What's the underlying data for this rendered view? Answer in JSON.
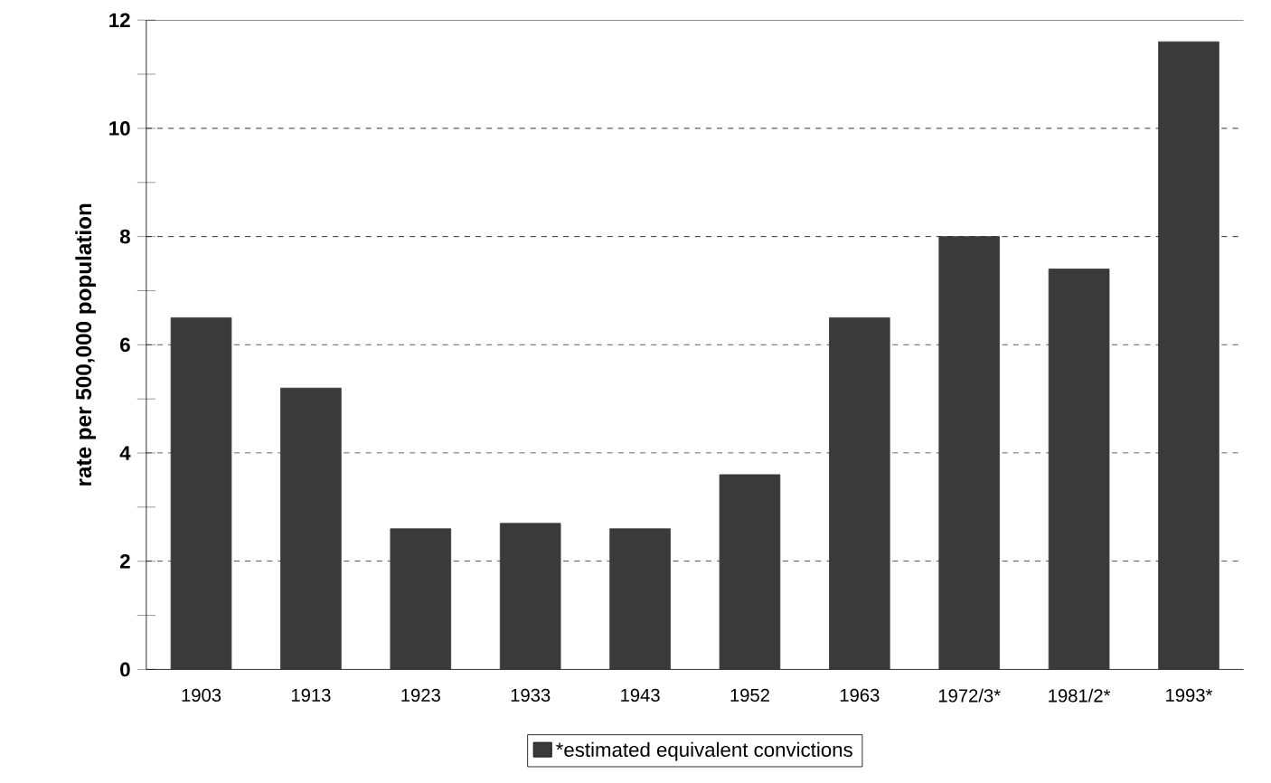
{
  "chart_data": {
    "type": "bar",
    "ylabel": "rate per 500,000 population",
    "categories": [
      "1903",
      "1913",
      "1923",
      "1933",
      "1943",
      "1952",
      "1963",
      "1972/3*",
      "1981/2*",
      "1993*"
    ],
    "series": [
      {
        "name": "*estimated equivalent convictions",
        "color": "#3a3a3a",
        "values": [
          6.5,
          5.2,
          2.6,
          2.7,
          2.6,
          3.6,
          6.5,
          8.0,
          7.4,
          11.6
        ]
      }
    ],
    "ylim": [
      0,
      12
    ],
    "yticks": [
      0,
      {
        "value": 1,
        "label": null
      },
      2,
      {
        "value": 3,
        "label": null
      },
      4,
      {
        "value": 5,
        "label": null
      },
      6,
      {
        "value": 7,
        "label": null
      },
      8,
      {
        "value": 9,
        "label": null
      },
      10,
      {
        "value": 11,
        "label": null
      },
      12
    ],
    "grid": "y",
    "legend": "bottom"
  }
}
